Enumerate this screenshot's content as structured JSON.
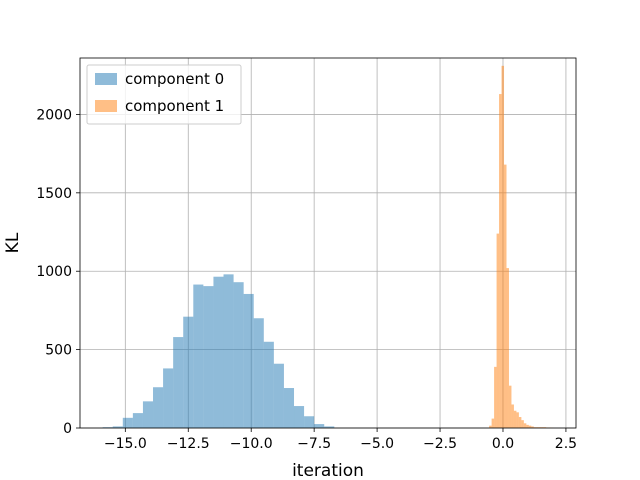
{
  "chart_data": {
    "type": "histogram",
    "xlabel": "iteration",
    "ylabel": "KL",
    "xlim": [
      -16.8,
      2.9
    ],
    "ylim": [
      0,
      2360
    ],
    "x_ticks": [
      -15.0,
      -12.5,
      -10.0,
      -7.5,
      -5.0,
      -2.5,
      0.0,
      2.5
    ],
    "x_tick_labels": [
      "−15.0",
      "−12.5",
      "−10.0",
      "−7.5",
      "−5.0",
      "−2.5",
      "0.0",
      "2.5"
    ],
    "y_ticks": [
      0,
      500,
      1000,
      1500,
      2000
    ],
    "y_tick_labels": [
      "0",
      "500",
      "1000",
      "1500",
      "2000"
    ],
    "grid": true,
    "legend_position": "top-left",
    "series": [
      {
        "name": "component 0",
        "color": "#1f77b4",
        "alpha": 0.5,
        "bin_start": -15.9,
        "bin_width": 0.4,
        "counts": [
          5,
          10,
          65,
          95,
          170,
          260,
          380,
          580,
          710,
          915,
          905,
          965,
          980,
          930,
          855,
          700,
          550,
          410,
          255,
          140,
          75,
          25,
          10
        ]
      },
      {
        "name": "component 1",
        "color": "#ff7f0e",
        "alpha": 0.5,
        "bin_start": -0.55,
        "bin_width": 0.0985,
        "counts": [
          15,
          60,
          390,
          1240,
          2130,
          2310,
          1680,
          1020,
          270,
          150,
          110,
          100,
          70,
          50,
          30,
          20,
          15,
          10,
          5,
          5,
          5,
          5,
          5,
          3,
          3,
          2
        ]
      }
    ]
  }
}
